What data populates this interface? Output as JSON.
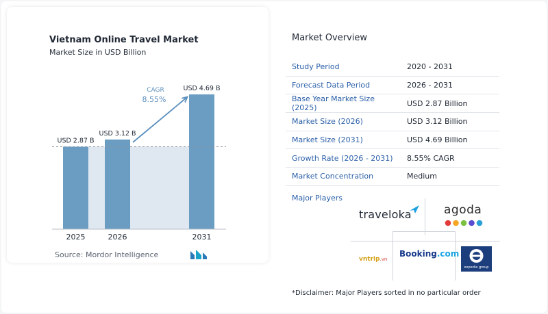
{
  "chart_panel": {
    "title": "Vietnam Online Travel Market",
    "subtitle": "Market Size in USD Billion",
    "source": "Source:  Mordor Intelligence",
    "cagr_label": "CAGR",
    "cagr_value": "8.55%"
  },
  "chart_data": {
    "type": "bar",
    "title": "Vietnam Online Travel Market",
    "subtitle": "Market Size in USD Billion",
    "categories": [
      "2025",
      "2026",
      "2031"
    ],
    "values": [
      2.87,
      3.12,
      4.69
    ],
    "value_labels": [
      "USD 2.87 B",
      "USD 3.12 B",
      "USD 4.69 B"
    ],
    "ylabel": "Market Size in USD Billion",
    "annotations": [
      "CAGR",
      "8.55%"
    ],
    "bar_color": "#6b9dc3",
    "grid": false
  },
  "overview": {
    "title": "Market Overview",
    "rows": [
      {
        "label": "Study Period",
        "value": "2020 - 2031"
      },
      {
        "label": "Forecast Data Period",
        "value": "2026 - 2031"
      },
      {
        "label": "Base Year Market Size (2025)",
        "value": "USD 2.87 Billion"
      },
      {
        "label": "Market Size (2026)",
        "value": "USD 3.12 Billion"
      },
      {
        "label": "Market Size (2031)",
        "value": "USD 4.69 Billion"
      },
      {
        "label": "Growth Rate (2026 - 2031)",
        "value": "8.55% CAGR"
      },
      {
        "label": "Market Concentration",
        "value": "Medium"
      }
    ]
  },
  "players": {
    "title": "Major Players",
    "logos": {
      "traveloka": "traveloka",
      "agoda": "agoda",
      "booking_main": "Booking",
      "booking_suffix": ".com",
      "vntrip": "vntrip",
      "vntrip_suffix": ".vn",
      "expedia_caption": "expedia group"
    },
    "agoda_dot_colors": [
      "#e23b3b",
      "#f5a623",
      "#7bc043",
      "#5b4bcf",
      "#2a9fd6"
    ]
  },
  "disclaimer": "*Disclaimer: Major Players sorted in no particular order"
}
